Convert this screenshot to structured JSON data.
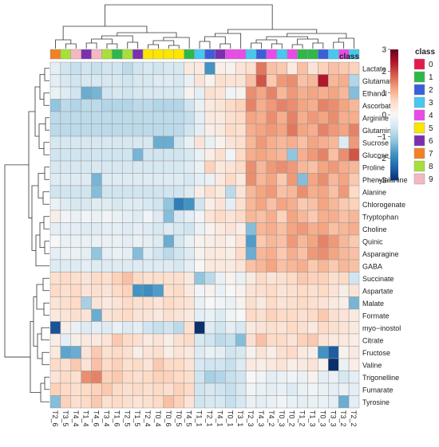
{
  "chart_data": {
    "type": "heatmap",
    "title": "",
    "columns": [
      "T2_6",
      "T3_5",
      "T4_4",
      "T1_4",
      "T4_6",
      "T3_4",
      "T1_6",
      "T2_5",
      "T1_5",
      "T2_4",
      "T0_4",
      "T0_6",
      "T0_5",
      "T4_5",
      "T1_1",
      "T2_1",
      "T4_1",
      "T0_1",
      "T3_1",
      "T2_3",
      "T4_3",
      "T4_2",
      "T0_3",
      "T0_2",
      "T1_2",
      "T1_3",
      "T0_3",
      "T3_3",
      "T3_2",
      "T2_2"
    ],
    "rows": [
      "Lactate",
      "Glutamate",
      "Ethanol",
      "Ascorbate",
      "Arginine",
      "Glutamine",
      "Sucrose",
      "Glucose",
      "Proline",
      "Phenylalanine",
      "Alanine",
      "Chlorogenate",
      "Tryptophan",
      "Choline",
      "Quinic",
      "Asparagine",
      "GABA",
      "Succinate",
      "Aspartate",
      "Malate",
      "Formate",
      "myo−inostol",
      "Citrate",
      "Fructose",
      "Valine",
      "Trigonelline",
      "Fumarate",
      "Tyrosine"
    ],
    "column_class": [
      7,
      8,
      9,
      6,
      9,
      8,
      1,
      8,
      6,
      5,
      5,
      5,
      5,
      1,
      3,
      2,
      6,
      4,
      4,
      3,
      2,
      4,
      3,
      4,
      1,
      1,
      2,
      3,
      4,
      3
    ],
    "values": [
      [
        -0.3,
        -0.6,
        -0.7,
        -0.6,
        -0.7,
        -0.6,
        -0.6,
        -0.8,
        -0.6,
        -0.5,
        -0.6,
        -0.5,
        -0.5,
        0.3,
        0.3,
        -1.8,
        0.2,
        0.1,
        0.4,
        0.5,
        1.6,
        0.9,
        0.8,
        0.3,
        0.9,
        0.4,
        0.7,
        0.9,
        0.8,
        0.7
      ],
      [
        -0.3,
        -0.5,
        -0.6,
        -0.5,
        -0.5,
        -0.5,
        -0.5,
        -0.6,
        -0.5,
        -0.5,
        -0.4,
        -0.4,
        -0.5,
        -0.2,
        0.4,
        0.1,
        0.5,
        0.4,
        0.4,
        0.9,
        1.9,
        0.8,
        1.3,
        1.4,
        0.9,
        1.0,
        2.4,
        1.0,
        1.1,
        -0.9
      ],
      [
        -0.2,
        -0.4,
        -0.6,
        -1.5,
        -1.4,
        -0.6,
        -0.5,
        -0.6,
        -0.5,
        -0.5,
        -0.5,
        -0.5,
        -0.5,
        0.1,
        -0.3,
        0.5,
        0.4,
        -0.1,
        0.1,
        1.4,
        1.2,
        1.5,
        1.0,
        1.3,
        1.1,
        1.2,
        1.1,
        1.2,
        1.0,
        -1.3
      ],
      [
        -1.2,
        -0.8,
        -0.9,
        -0.8,
        -0.8,
        -0.9,
        -0.9,
        -0.9,
        -0.8,
        -0.8,
        -0.9,
        -0.9,
        -0.9,
        -0.6,
        -0.2,
        0.3,
        0.4,
        0.6,
        0.7,
        1.5,
        1.1,
        1.3,
        1.5,
        1.4,
        1.2,
        1.1,
        1.5,
        1.4,
        1.2,
        1.0
      ],
      [
        -0.8,
        -0.8,
        -0.8,
        -0.8,
        -0.8,
        -0.8,
        -0.8,
        -0.8,
        -0.8,
        -0.8,
        -0.8,
        -0.8,
        -0.8,
        -0.7,
        -0.3,
        0.3,
        0.3,
        0.5,
        0.6,
        1.2,
        1.1,
        1.4,
        1.1,
        1.5,
        1.1,
        1.3,
        1.2,
        1.4,
        1.1,
        1.1
      ],
      [
        -0.8,
        -0.8,
        -0.8,
        -0.8,
        -0.8,
        -0.8,
        -0.8,
        -0.8,
        -0.8,
        -0.8,
        -0.8,
        -0.8,
        -0.8,
        -0.6,
        -0.3,
        0.2,
        0.3,
        0.6,
        0.5,
        1.1,
        1.2,
        1.3,
        1.2,
        1.6,
        1.2,
        1.1,
        1.5,
        1.3,
        1.2,
        1.5
      ],
      [
        -0.5,
        -0.5,
        -0.5,
        -0.5,
        -0.5,
        -0.5,
        -0.5,
        -0.5,
        -0.5,
        -0.5,
        -1.5,
        -1.5,
        -0.6,
        -0.2,
        0.4,
        -0.2,
        0.1,
        0.4,
        0.5,
        1.0,
        1.3,
        1.1,
        1.0,
        1.1,
        0.9,
        1.2,
        1.1,
        1.0,
        -0.4,
        1.3
      ],
      [
        -0.6,
        -0.6,
        -0.6,
        -0.6,
        -0.6,
        -0.6,
        -0.6,
        -0.6,
        -1.4,
        -0.6,
        -0.6,
        -0.6,
        -0.6,
        -0.5,
        -0.2,
        0.2,
        0.5,
        -0.1,
        0.6,
        1.1,
        1.2,
        1.1,
        1.0,
        -1.2,
        1.1,
        1.3,
        1.5,
        0.9,
        1.4,
        1.9
      ],
      [
        -0.5,
        -0.5,
        -0.5,
        -0.5,
        -0.5,
        -0.5,
        -0.5,
        -0.5,
        -0.5,
        -0.5,
        -0.5,
        -0.5,
        -0.5,
        -0.4,
        -0.2,
        0.7,
        0.3,
        0.4,
        0.6,
        1.4,
        1.0,
        1.3,
        1.4,
        1.3,
        1.0,
        0.9,
        1.2,
        1.3,
        1.1,
        1.0
      ],
      [
        -0.4,
        -0.4,
        -0.4,
        -0.4,
        -1.4,
        -0.4,
        -0.4,
        -0.4,
        -0.4,
        -0.4,
        -0.4,
        -0.4,
        -0.4,
        -0.5,
        -0.3,
        -0.2,
        0.3,
        0.6,
        0.3,
        1.4,
        1.0,
        1.2,
        0.8,
        1.3,
        -1.3,
        1.2,
        1.4,
        1.0,
        1.2,
        0.8
      ],
      [
        -0.6,
        -0.6,
        -0.6,
        -0.6,
        -1.3,
        -0.6,
        -0.6,
        -0.6,
        -0.6,
        -0.6,
        -0.6,
        -0.6,
        -0.6,
        -0.4,
        0.2,
        0.5,
        0.3,
        -0.8,
        0.4,
        1.0,
        1.2,
        1.3,
        0.9,
        1.0,
        1.4,
        1.1,
        1.2,
        0.9,
        1.3,
        0.6
      ],
      [
        -0.2,
        -0.4,
        -0.5,
        -0.5,
        -0.4,
        -0.4,
        -0.5,
        -0.4,
        -0.4,
        -0.5,
        -0.6,
        -1.2,
        -2.1,
        -1.8,
        -0.6,
        0.2,
        0.4,
        -0.3,
        0.5,
        1.0,
        1.2,
        0.9,
        1.2,
        1.1,
        0.8,
        0.9,
        1.2,
        1.0,
        0.8,
        0.7
      ],
      [
        0.2,
        -0.1,
        -0.2,
        -0.1,
        -0.2,
        -0.1,
        -0.2,
        -0.3,
        -0.4,
        -0.1,
        -0.4,
        -1.3,
        -0.5,
        -0.3,
        -0.1,
        0.4,
        0.6,
        0.4,
        0.6,
        1.0,
        0.9,
        1.1,
        0.7,
        1.2,
        1.0,
        0.8,
        1.1,
        1.1,
        0.9,
        1.0
      ],
      [
        -0.3,
        -0.3,
        -0.3,
        -0.4,
        -0.4,
        -0.3,
        -0.3,
        -0.4,
        -0.3,
        -0.4,
        -0.5,
        -0.4,
        -0.5,
        -0.6,
        -0.2,
        0.1,
        0.3,
        0.4,
        0.2,
        -1.3,
        1.0,
        1.1,
        0.9,
        1.2,
        1.3,
        1.1,
        1.2,
        0.9,
        1.0,
        1.1
      ],
      [
        0.0,
        -0.2,
        -0.2,
        -0.2,
        -0.2,
        -0.2,
        -0.2,
        -0.3,
        -0.2,
        -0.3,
        -0.4,
        -1.5,
        -0.5,
        -0.2,
        0.1,
        0.2,
        0.3,
        0.1,
        0.4,
        -1.7,
        0.8,
        1.0,
        0.9,
        1.3,
        1.0,
        1.2,
        1.5,
        1.3,
        1.0,
        0.8
      ],
      [
        -0.3,
        -0.2,
        -0.2,
        -0.3,
        -1.2,
        -0.3,
        -0.2,
        -0.3,
        -1.3,
        -0.4,
        -0.6,
        -0.8,
        -0.6,
        -0.4,
        0.1,
        0.3,
        0.3,
        0.2,
        0.6,
        -1.5,
        1.0,
        1.1,
        0.8,
        1.1,
        0.9,
        1.3,
        1.4,
        1.2,
        1.0,
        0.9
      ],
      [
        -0.4,
        -0.4,
        -0.4,
        -0.3,
        -0.4,
        -0.4,
        -0.4,
        -0.4,
        -0.4,
        -0.4,
        -0.4,
        -0.4,
        -0.5,
        -0.3,
        0.0,
        0.3,
        0.3,
        0.3,
        0.4,
        0.9,
        1.0,
        1.2,
        0.9,
        1.0,
        1.1,
        0.8,
        1.0,
        0.8,
        1.0,
        0.9
      ],
      [
        0.5,
        0.6,
        0.5,
        0.4,
        0.6,
        0.5,
        0.7,
        0.9,
        0.6,
        0.5,
        0.5,
        0.5,
        0.5,
        0.3,
        -1.2,
        -0.8,
        -0.2,
        0.1,
        -0.2,
        0.3,
        0.6,
        0.4,
        0.5,
        0.6,
        0.8,
        0.7,
        0.7,
        0.5,
        0.6,
        -0.6
      ],
      [
        0.6,
        0.5,
        0.6,
        0.4,
        0.5,
        0.4,
        0.6,
        0.7,
        -1.8,
        -1.9,
        -1.7,
        0.5,
        0.6,
        0.3,
        -0.1,
        0.1,
        -0.2,
        0.0,
        0.1,
        0.4,
        0.5,
        0.6,
        0.4,
        0.5,
        0.6,
        0.5,
        0.6,
        0.4,
        0.2,
        0.4
      ],
      [
        0.4,
        0.5,
        0.6,
        -1.0,
        0.4,
        0.3,
        0.4,
        0.6,
        0.5,
        0.5,
        0.4,
        0.6,
        0.5,
        0.4,
        -0.2,
        0.0,
        -0.1,
        -0.2,
        0.1,
        0.5,
        0.3,
        0.6,
        0.4,
        0.5,
        0.6,
        0.5,
        0.4,
        0.3,
        0.2,
        -1.4
      ],
      [
        0.3,
        0.4,
        0.5,
        0.4,
        -1.5,
        0.4,
        0.5,
        0.6,
        0.4,
        0.4,
        0.3,
        0.5,
        0.4,
        0.3,
        -0.3,
        -0.2,
        -0.4,
        -0.1,
        0.0,
        0.6,
        0.5,
        0.7,
        0.6,
        0.6,
        0.5,
        0.6,
        0.8,
        0.5,
        0.4,
        0.3
      ],
      [
        -2.6,
        0.2,
        -0.2,
        -0.4,
        -0.3,
        -0.4,
        -0.2,
        -0.4,
        -0.3,
        -0.6,
        -0.7,
        -0.6,
        -0.8,
        0.5,
        -3.0,
        -0.4,
        -0.6,
        -0.3,
        -0.5,
        0.3,
        0.4,
        0.5,
        0.4,
        0.6,
        0.5,
        0.3,
        0.6,
        0.5,
        0.4,
        0.3
      ],
      [
        0.2,
        -0.3,
        0.2,
        0.3,
        0.3,
        0.4,
        0.8,
        0.6,
        0.5,
        0.3,
        0.4,
        0.2,
        0.5,
        0.6,
        -0.5,
        -0.6,
        -0.8,
        -0.7,
        -1.3,
        0.5,
        0.9,
        0.6,
        0.6,
        0.4,
        0.7,
        0.8,
        0.4,
        0.3,
        0.3,
        0.2
      ],
      [
        0.3,
        -1.6,
        -1.5,
        0.4,
        0.8,
        0.5,
        0.6,
        0.5,
        0.2,
        0.4,
        0.5,
        0.2,
        0.4,
        0.3,
        -0.4,
        -0.2,
        -0.3,
        -0.6,
        -0.5,
        0.1,
        0.4,
        0.2,
        0.5,
        0.6,
        0.3,
        0.2,
        -1.8,
        -2.5,
        0.1,
        0.3
      ],
      [
        0.6,
        0.5,
        0.8,
        0.4,
        0.9,
        0.6,
        0.7,
        0.5,
        0.6,
        0.4,
        0.8,
        0.6,
        0.6,
        0.4,
        -0.5,
        -0.6,
        -0.6,
        -0.7,
        -0.4,
        0.3,
        0.2,
        0.3,
        0.4,
        0.2,
        0.3,
        0.4,
        0.1,
        -3.1,
        -0.2,
        0.2
      ],
      [
        0.4,
        0.6,
        0.5,
        1.4,
        1.5,
        0.7,
        0.8,
        0.6,
        0.5,
        0.6,
        0.7,
        0.7,
        0.6,
        0.5,
        -0.6,
        -1.0,
        -0.9,
        -0.7,
        -0.6,
        0.0,
        -0.1,
        -0.3,
        -0.2,
        -0.1,
        -0.2,
        0.1,
        -0.3,
        -0.2,
        -0.5,
        -0.3
      ],
      [
        0.7,
        0.6,
        0.5,
        0.6,
        0.7,
        0.8,
        0.6,
        0.5,
        0.6,
        0.5,
        0.6,
        0.5,
        0.7,
        0.6,
        -0.6,
        -0.5,
        -0.6,
        -0.7,
        -0.5,
        -0.1,
        -0.2,
        -0.3,
        -0.2,
        -0.4,
        -0.2,
        -0.1,
        -0.2,
        -0.3,
        -0.2,
        -0.3
      ],
      [
        -1.3,
        0.7,
        0.5,
        0.6,
        0.8,
        0.5,
        0.6,
        0.5,
        0.4,
        0.5,
        0.6,
        0.9,
        0.7,
        0.4,
        -0.6,
        -0.5,
        -0.5,
        -0.7,
        -0.5,
        -0.2,
        -0.3,
        -0.2,
        -0.1,
        -0.2,
        -0.3,
        -0.2,
        -0.2,
        -0.3,
        -1.5,
        -0.3
      ]
    ],
    "color_scale": {
      "min": -3,
      "max": 3,
      "ticks": [
        3,
        2,
        1,
        0,
        -1,
        -2,
        -3
      ],
      "ticks_labels": [
        "3",
        "2",
        "1",
        "0",
        "−1",
        "−2",
        "−3"
      ],
      "colors": [
        "#08306b",
        "#2166ac",
        "#4393c3",
        "#92c5de",
        "#d1e5f0",
        "#f7f7f7",
        "#fddbc7",
        "#f4a582",
        "#d6604d",
        "#b2182b",
        "#67001f"
      ]
    },
    "annotation": {
      "label": "class",
      "legend_title": "class",
      "classes": [
        "0",
        "1",
        "2",
        "3",
        "4",
        "5",
        "6",
        "7",
        "8",
        "9"
      ],
      "class_colors": [
        "#e41a4d",
        "#2eb84a",
        "#3a5fd9",
        "#46c8f0",
        "#e84be8",
        "#fce600",
        "#7b2fae",
        "#f08224",
        "#a8e03a",
        "#f5b8c0"
      ]
    },
    "grid": true
  }
}
